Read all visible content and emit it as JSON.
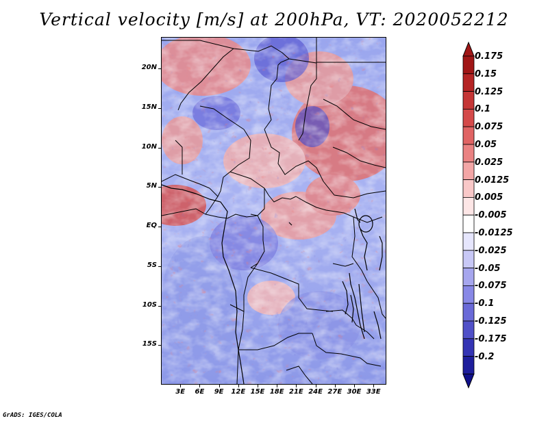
{
  "title": "Vertical velocity [m/s] at 200hPa, VT: 2020052212",
  "credit": "GrADS: IGES/COLA",
  "map": {
    "lat_range": [
      -20,
      24
    ],
    "lon_range": [
      0,
      35
    ],
    "lat_ticks": [
      {
        "label": "20N",
        "value": 20
      },
      {
        "label": "15N",
        "value": 15
      },
      {
        "label": "10N",
        "value": 10
      },
      {
        "label": "5N",
        "value": 5
      },
      {
        "label": "EQ",
        "value": 0
      },
      {
        "label": "5S",
        "value": -5
      },
      {
        "label": "10S",
        "value": -10
      },
      {
        "label": "15S",
        "value": -15
      }
    ],
    "lon_ticks": [
      {
        "label": "3E",
        "value": 3
      },
      {
        "label": "6E",
        "value": 6
      },
      {
        "label": "9E",
        "value": 9
      },
      {
        "label": "12E",
        "value": 12
      },
      {
        "label": "15E",
        "value": 15
      },
      {
        "label": "18E",
        "value": 18
      },
      {
        "label": "21E",
        "value": 21
      },
      {
        "label": "24E",
        "value": 24
      },
      {
        "label": "27E",
        "value": 27
      },
      {
        "label": "30E",
        "value": 30
      },
      {
        "label": "33E",
        "value": 33
      }
    ]
  },
  "colorbar": {
    "levels": [
      {
        "label": "0.175",
        "color": "#a01616"
      },
      {
        "label": "0.15",
        "color": "#b52424"
      },
      {
        "label": "0.125",
        "color": "#c53636"
      },
      {
        "label": "0.1",
        "color": "#d44a4a"
      },
      {
        "label": "0.075",
        "color": "#e06464"
      },
      {
        "label": "0.05",
        "color": "#ea8282"
      },
      {
        "label": "0.025",
        "color": "#f3a6a6"
      },
      {
        "label": "0.0125",
        "color": "#f9c8c8"
      },
      {
        "label": "0.005",
        "color": "#fde6e6"
      },
      {
        "label": "-0.005",
        "color": "#ffffff"
      },
      {
        "label": "-0.0125",
        "color": "#e6e6fd"
      },
      {
        "label": "-0.025",
        "color": "#c8c8f6"
      },
      {
        "label": "-0.05",
        "color": "#a6a6ee"
      },
      {
        "label": "-0.075",
        "color": "#8888e6"
      },
      {
        "label": "-0.1",
        "color": "#6a6ad8"
      },
      {
        "label": "-0.125",
        "color": "#5050c8"
      },
      {
        "label": "-0.175",
        "color": "#3434b4"
      },
      {
        "label": "-0.2",
        "color": "#1e1e9c"
      }
    ],
    "bottom_color": "#10108a"
  }
}
